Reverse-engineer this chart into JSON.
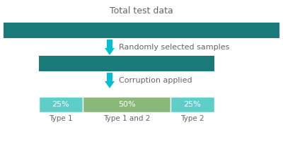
{
  "title": "Total test data",
  "bar1_color": "#1a7a7a",
  "bar2_color": "#1a7a7a",
  "label_arrow1": "Randomly selected samples",
  "label_arrow2": "Corruption applied",
  "arrow_color": "#00c0d4",
  "segment_colors": [
    "#5ecec8",
    "#8ab87a",
    "#5ecec8"
  ],
  "segment_values": [
    0.25,
    0.5,
    0.25
  ],
  "segment_labels_pct": [
    "25%",
    "50%",
    "25%"
  ],
  "segment_labels_type": [
    "Type 1",
    "Type 1 and 2",
    "Type 2"
  ],
  "background_color": "#ffffff",
  "text_color": "#666666",
  "title_fontsize": 9,
  "label_fontsize": 8,
  "seg_label_fontsize": 8,
  "type_label_fontsize": 7.5
}
